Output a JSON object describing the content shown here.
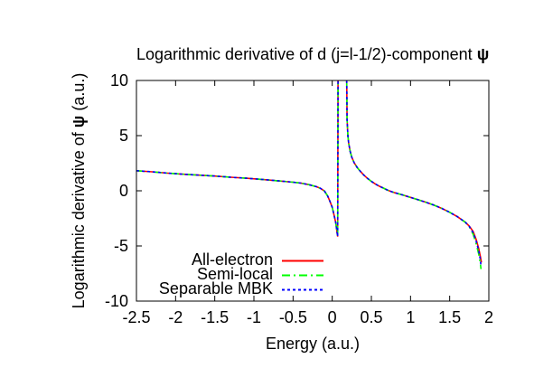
{
  "figure": {
    "title": {
      "prefix": "Logarithmic derivative of d (j=l-1/2)-component ",
      "symbol": "ψ"
    },
    "xlabel": "Energy (a.u.)",
    "ylabel": {
      "prefix": "Logarithmic derivative of ",
      "symbol": "ψ",
      "suffix": " (a.u.)"
    },
    "background_color": "#ffffff",
    "frame_color": "#000000"
  },
  "chart_data": {
    "type": "line",
    "title": "Logarithmic derivative of d (j=l-1/2)-component ψ",
    "xlabel": "Energy (a.u.)",
    "ylabel": "Logarithmic derivative of ψ (a.u.)",
    "xlim": [
      -2.5,
      2
    ],
    "ylim": [
      -10,
      10
    ],
    "x_ticks": [
      -2.5,
      -2,
      -1.5,
      -1,
      -0.5,
      0,
      0.5,
      1,
      1.5,
      2
    ],
    "x_tick_labels": [
      "-2.5",
      "-2",
      "-1.5",
      "-1",
      "-0.5",
      "0",
      "0.5",
      "1",
      "1.5",
      "2"
    ],
    "y_ticks": [
      -10,
      -5,
      0,
      5,
      10
    ],
    "y_tick_labels": [
      "-10",
      "-5",
      "0",
      "5",
      "10"
    ],
    "grid": false,
    "legend_position": "inside-bottom-left",
    "pole_region_x": [
      0.074,
      0.185
    ],
    "series": [
      {
        "name": "All-electron",
        "color": "#ff0000",
        "dash": "solid",
        "segments": [
          [
            [
              -2.5,
              1.82
            ],
            [
              -2.3,
              1.72
            ],
            [
              -2.1,
              1.6
            ],
            [
              -1.9,
              1.5
            ],
            [
              -1.7,
              1.42
            ],
            [
              -1.5,
              1.34
            ],
            [
              -1.3,
              1.23
            ],
            [
              -1.1,
              1.14
            ],
            [
              -0.9,
              1.03
            ],
            [
              -0.7,
              0.91
            ],
            [
              -0.5,
              0.78
            ],
            [
              -0.4,
              0.7
            ],
            [
              -0.3,
              0.56
            ],
            [
              -0.2,
              0.37
            ],
            [
              -0.15,
              0.22
            ],
            [
              -0.1,
              -0.02
            ],
            [
              -0.06,
              -0.45
            ],
            [
              -0.03,
              -0.95
            ],
            [
              0.0,
              -1.5
            ],
            [
              0.02,
              -2.1
            ],
            [
              0.045,
              -2.9
            ],
            [
              0.06,
              -3.7
            ],
            [
              0.07,
              -4.15
            ],
            [
              0.074,
              10
            ]
          ],
          [
            [
              0.185,
              10
            ],
            [
              0.19,
              6.5
            ],
            [
              0.2,
              5.0
            ],
            [
              0.21,
              4.3
            ],
            [
              0.23,
              3.55
            ],
            [
              0.25,
              3.05
            ],
            [
              0.28,
              2.55
            ],
            [
              0.32,
              2.1
            ],
            [
              0.36,
              1.75
            ],
            [
              0.4,
              1.45
            ],
            [
              0.45,
              1.12
            ],
            [
              0.5,
              0.85
            ],
            [
              0.55,
              0.62
            ],
            [
              0.6,
              0.42
            ],
            [
              0.65,
              0.25
            ],
            [
              0.7,
              0.08
            ],
            [
              0.75,
              -0.06
            ],
            [
              0.8,
              -0.18
            ],
            [
              0.9,
              -0.38
            ],
            [
              1.0,
              -0.6
            ],
            [
              1.1,
              -0.82
            ],
            [
              1.2,
              -1.05
            ],
            [
              1.3,
              -1.3
            ],
            [
              1.4,
              -1.6
            ],
            [
              1.5,
              -1.95
            ],
            [
              1.6,
              -2.35
            ],
            [
              1.7,
              -2.85
            ],
            [
              1.75,
              -3.2
            ],
            [
              1.8,
              -3.7
            ],
            [
              1.84,
              -4.45
            ],
            [
              1.87,
              -5.2
            ],
            [
              1.89,
              -5.9
            ],
            [
              1.905,
              -6.5
            ]
          ]
        ]
      },
      {
        "name": "Semi-local",
        "color": "#00ff00",
        "dash": "dash-dot",
        "segments": [
          [
            [
              -2.5,
              1.82
            ],
            [
              -2.3,
              1.72
            ],
            [
              -2.1,
              1.6
            ],
            [
              -1.9,
              1.5
            ],
            [
              -1.7,
              1.42
            ],
            [
              -1.5,
              1.34
            ],
            [
              -1.3,
              1.23
            ],
            [
              -1.1,
              1.14
            ],
            [
              -0.9,
              1.03
            ],
            [
              -0.7,
              0.91
            ],
            [
              -0.5,
              0.78
            ],
            [
              -0.4,
              0.7
            ],
            [
              -0.3,
              0.56
            ],
            [
              -0.2,
              0.37
            ],
            [
              -0.15,
              0.22
            ],
            [
              -0.1,
              -0.02
            ],
            [
              -0.06,
              -0.45
            ],
            [
              -0.03,
              -0.95
            ],
            [
              0.0,
              -1.5
            ],
            [
              0.02,
              -2.1
            ],
            [
              0.045,
              -2.9
            ],
            [
              0.06,
              -3.7
            ],
            [
              0.07,
              -4.15
            ],
            [
              0.074,
              10
            ]
          ],
          [
            [
              0.185,
              10
            ],
            [
              0.19,
              6.5
            ],
            [
              0.2,
              5.0
            ],
            [
              0.21,
              4.3
            ],
            [
              0.23,
              3.55
            ],
            [
              0.25,
              3.05
            ],
            [
              0.28,
              2.55
            ],
            [
              0.32,
              2.1
            ],
            [
              0.36,
              1.75
            ],
            [
              0.4,
              1.45
            ],
            [
              0.45,
              1.12
            ],
            [
              0.5,
              0.85
            ],
            [
              0.55,
              0.62
            ],
            [
              0.6,
              0.42
            ],
            [
              0.65,
              0.25
            ],
            [
              0.7,
              0.08
            ],
            [
              0.75,
              -0.06
            ],
            [
              0.8,
              -0.18
            ],
            [
              0.9,
              -0.38
            ],
            [
              1.0,
              -0.6
            ],
            [
              1.1,
              -0.82
            ],
            [
              1.2,
              -1.05
            ],
            [
              1.3,
              -1.3
            ],
            [
              1.4,
              -1.6
            ],
            [
              1.5,
              -1.95
            ],
            [
              1.6,
              -2.35
            ],
            [
              1.7,
              -2.85
            ],
            [
              1.75,
              -3.25
            ],
            [
              1.8,
              -3.95
            ],
            [
              1.84,
              -4.85
            ],
            [
              1.87,
              -5.7
            ],
            [
              1.89,
              -6.5
            ],
            [
              1.9,
              -7.1
            ]
          ]
        ]
      },
      {
        "name": "Separable MBK",
        "color": "#0000ff",
        "dash": "fine-dash",
        "segments": [
          [
            [
              -2.5,
              1.82
            ],
            [
              -2.3,
              1.72
            ],
            [
              -2.1,
              1.6
            ],
            [
              -1.9,
              1.5
            ],
            [
              -1.7,
              1.42
            ],
            [
              -1.5,
              1.34
            ],
            [
              -1.3,
              1.23
            ],
            [
              -1.1,
              1.14
            ],
            [
              -0.9,
              1.03
            ],
            [
              -0.7,
              0.91
            ],
            [
              -0.5,
              0.78
            ],
            [
              -0.4,
              0.7
            ],
            [
              -0.3,
              0.56
            ],
            [
              -0.2,
              0.37
            ],
            [
              -0.15,
              0.22
            ],
            [
              -0.1,
              -0.02
            ],
            [
              -0.06,
              -0.45
            ],
            [
              -0.03,
              -0.95
            ],
            [
              0.0,
              -1.5
            ],
            [
              0.02,
              -2.1
            ],
            [
              0.045,
              -2.9
            ],
            [
              0.06,
              -3.7
            ],
            [
              0.07,
              -4.15
            ],
            [
              0.074,
              10
            ]
          ],
          [
            [
              0.185,
              10
            ],
            [
              0.19,
              6.5
            ],
            [
              0.2,
              5.0
            ],
            [
              0.21,
              4.3
            ],
            [
              0.23,
              3.55
            ],
            [
              0.25,
              3.05
            ],
            [
              0.28,
              2.55
            ],
            [
              0.32,
              2.1
            ],
            [
              0.36,
              1.75
            ],
            [
              0.4,
              1.45
            ],
            [
              0.45,
              1.12
            ],
            [
              0.5,
              0.85
            ],
            [
              0.55,
              0.62
            ],
            [
              0.6,
              0.42
            ],
            [
              0.65,
              0.25
            ],
            [
              0.7,
              0.08
            ],
            [
              0.75,
              -0.06
            ],
            [
              0.8,
              -0.18
            ],
            [
              0.9,
              -0.38
            ],
            [
              1.0,
              -0.6
            ],
            [
              1.1,
              -0.82
            ],
            [
              1.2,
              -1.05
            ],
            [
              1.3,
              -1.3
            ],
            [
              1.4,
              -1.6
            ],
            [
              1.5,
              -1.95
            ],
            [
              1.6,
              -2.35
            ],
            [
              1.7,
              -2.85
            ],
            [
              1.75,
              -3.22
            ],
            [
              1.8,
              -3.8
            ],
            [
              1.84,
              -4.6
            ],
            [
              1.87,
              -5.4
            ],
            [
              1.89,
              -6.2
            ],
            [
              1.9,
              -6.8
            ]
          ]
        ]
      }
    ]
  }
}
